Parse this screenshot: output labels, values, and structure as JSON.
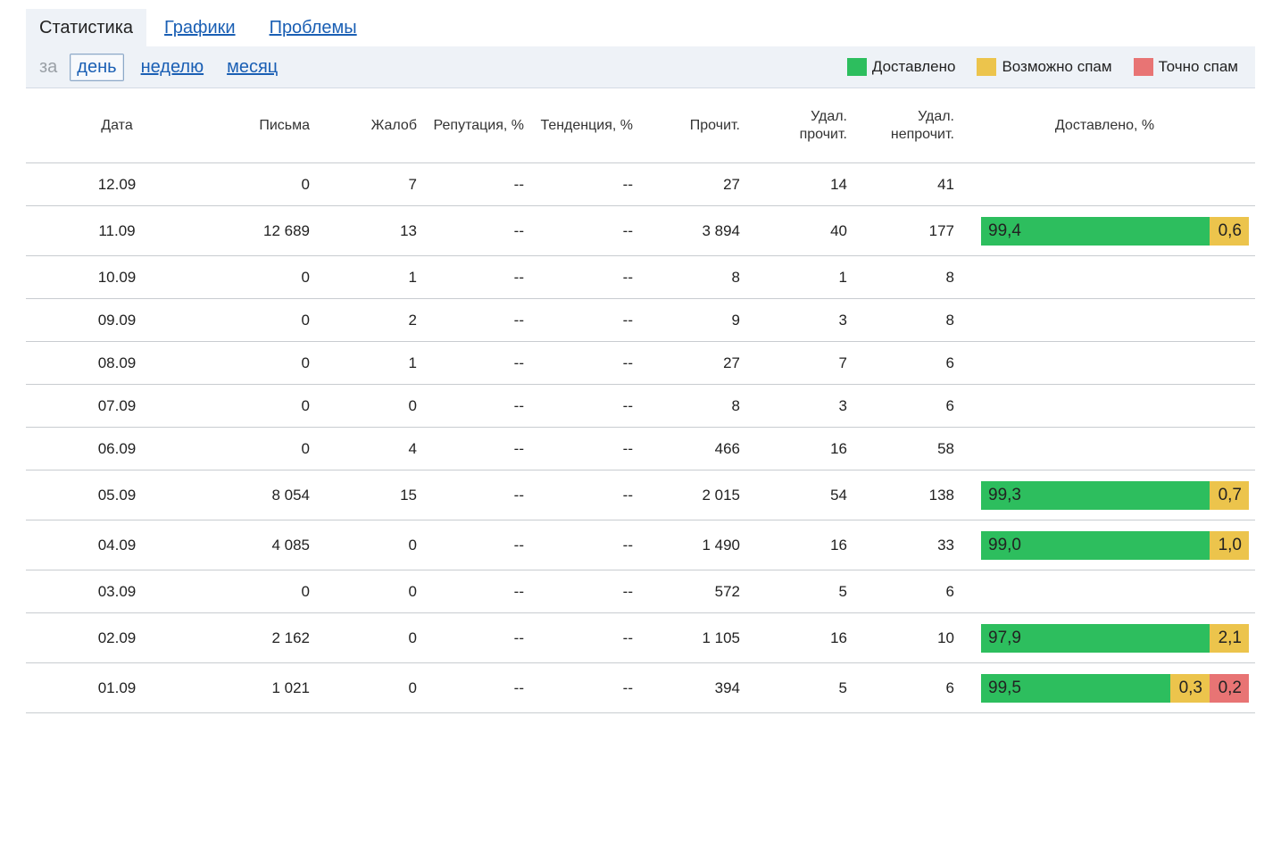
{
  "tabs": [
    {
      "label": "Статистика",
      "active": true
    },
    {
      "label": "Графики",
      "active": false
    },
    {
      "label": "Проблемы",
      "active": false
    }
  ],
  "period": {
    "label": "за",
    "options": [
      {
        "label": "день",
        "active": true
      },
      {
        "label": "неделю",
        "active": false
      },
      {
        "label": "месяц",
        "active": false
      }
    ]
  },
  "legend": [
    {
      "label": "Доставлено",
      "color": "#2dbe5e"
    },
    {
      "label": "Возможно спам",
      "color": "#ecc44c"
    },
    {
      "label": "Точно спам",
      "color": "#e87474"
    }
  ],
  "table": {
    "headers": {
      "date": "Дата",
      "letters": "Письма",
      "complaints": "Жалоб",
      "reputation": "Репутация, %",
      "trend": "Тенденция, %",
      "read": "Прочит.",
      "deleted_read_1": "Удал.",
      "deleted_read_2": "прочит.",
      "deleted_unread_1": "Удал.",
      "deleted_unread_2": "непрочит.",
      "delivered": "Доставлено, %"
    },
    "rows": [
      {
        "date": "12.09",
        "letters": "0",
        "complaints": "7",
        "reputation": "--",
        "trend": "--",
        "read": "27",
        "deleted_read": "14",
        "deleted_unread": "41",
        "delivery": null
      },
      {
        "date": "11.09",
        "letters": "12 689",
        "complaints": "13",
        "reputation": "--",
        "trend": "--",
        "read": "3 894",
        "deleted_read": "40",
        "deleted_unread": "177",
        "delivery": {
          "delivered": "99,4",
          "maybe_spam": "0,6",
          "spam": null
        }
      },
      {
        "date": "10.09",
        "letters": "0",
        "complaints": "1",
        "reputation": "--",
        "trend": "--",
        "read": "8",
        "deleted_read": "1",
        "deleted_unread": "8",
        "delivery": null
      },
      {
        "date": "09.09",
        "letters": "0",
        "complaints": "2",
        "reputation": "--",
        "trend": "--",
        "read": "9",
        "deleted_read": "3",
        "deleted_unread": "8",
        "delivery": null
      },
      {
        "date": "08.09",
        "letters": "0",
        "complaints": "1",
        "reputation": "--",
        "trend": "--",
        "read": "27",
        "deleted_read": "7",
        "deleted_unread": "6",
        "delivery": null
      },
      {
        "date": "07.09",
        "letters": "0",
        "complaints": "0",
        "reputation": "--",
        "trend": "--",
        "read": "8",
        "deleted_read": "3",
        "deleted_unread": "6",
        "delivery": null
      },
      {
        "date": "06.09",
        "letters": "0",
        "complaints": "4",
        "reputation": "--",
        "trend": "--",
        "read": "466",
        "deleted_read": "16",
        "deleted_unread": "58",
        "delivery": null
      },
      {
        "date": "05.09",
        "letters": "8 054",
        "complaints": "15",
        "reputation": "--",
        "trend": "--",
        "read": "2 015",
        "deleted_read": "54",
        "deleted_unread": "138",
        "delivery": {
          "delivered": "99,3",
          "maybe_spam": "0,7",
          "spam": null
        }
      },
      {
        "date": "04.09",
        "letters": "4 085",
        "complaints": "0",
        "reputation": "--",
        "trend": "--",
        "read": "1 490",
        "deleted_read": "16",
        "deleted_unread": "33",
        "delivery": {
          "delivered": "99,0",
          "maybe_spam": "1,0",
          "spam": null
        }
      },
      {
        "date": "03.09",
        "letters": "0",
        "complaints": "0",
        "reputation": "--",
        "trend": "--",
        "read": "572",
        "deleted_read": "5",
        "deleted_unread": "6",
        "delivery": null
      },
      {
        "date": "02.09",
        "letters": "2 162",
        "complaints": "0",
        "reputation": "--",
        "trend": "--",
        "read": "1 105",
        "deleted_read": "16",
        "deleted_unread": "10",
        "delivery": {
          "delivered": "97,9",
          "maybe_spam": "2,1",
          "spam": null
        }
      },
      {
        "date": "01.09",
        "letters": "1 021",
        "complaints": "0",
        "reputation": "--",
        "trend": "--",
        "read": "394",
        "deleted_read": "5",
        "deleted_unread": "6",
        "delivery": {
          "delivered": "99,5",
          "maybe_spam": "0,3",
          "spam": "0,2"
        }
      }
    ]
  }
}
